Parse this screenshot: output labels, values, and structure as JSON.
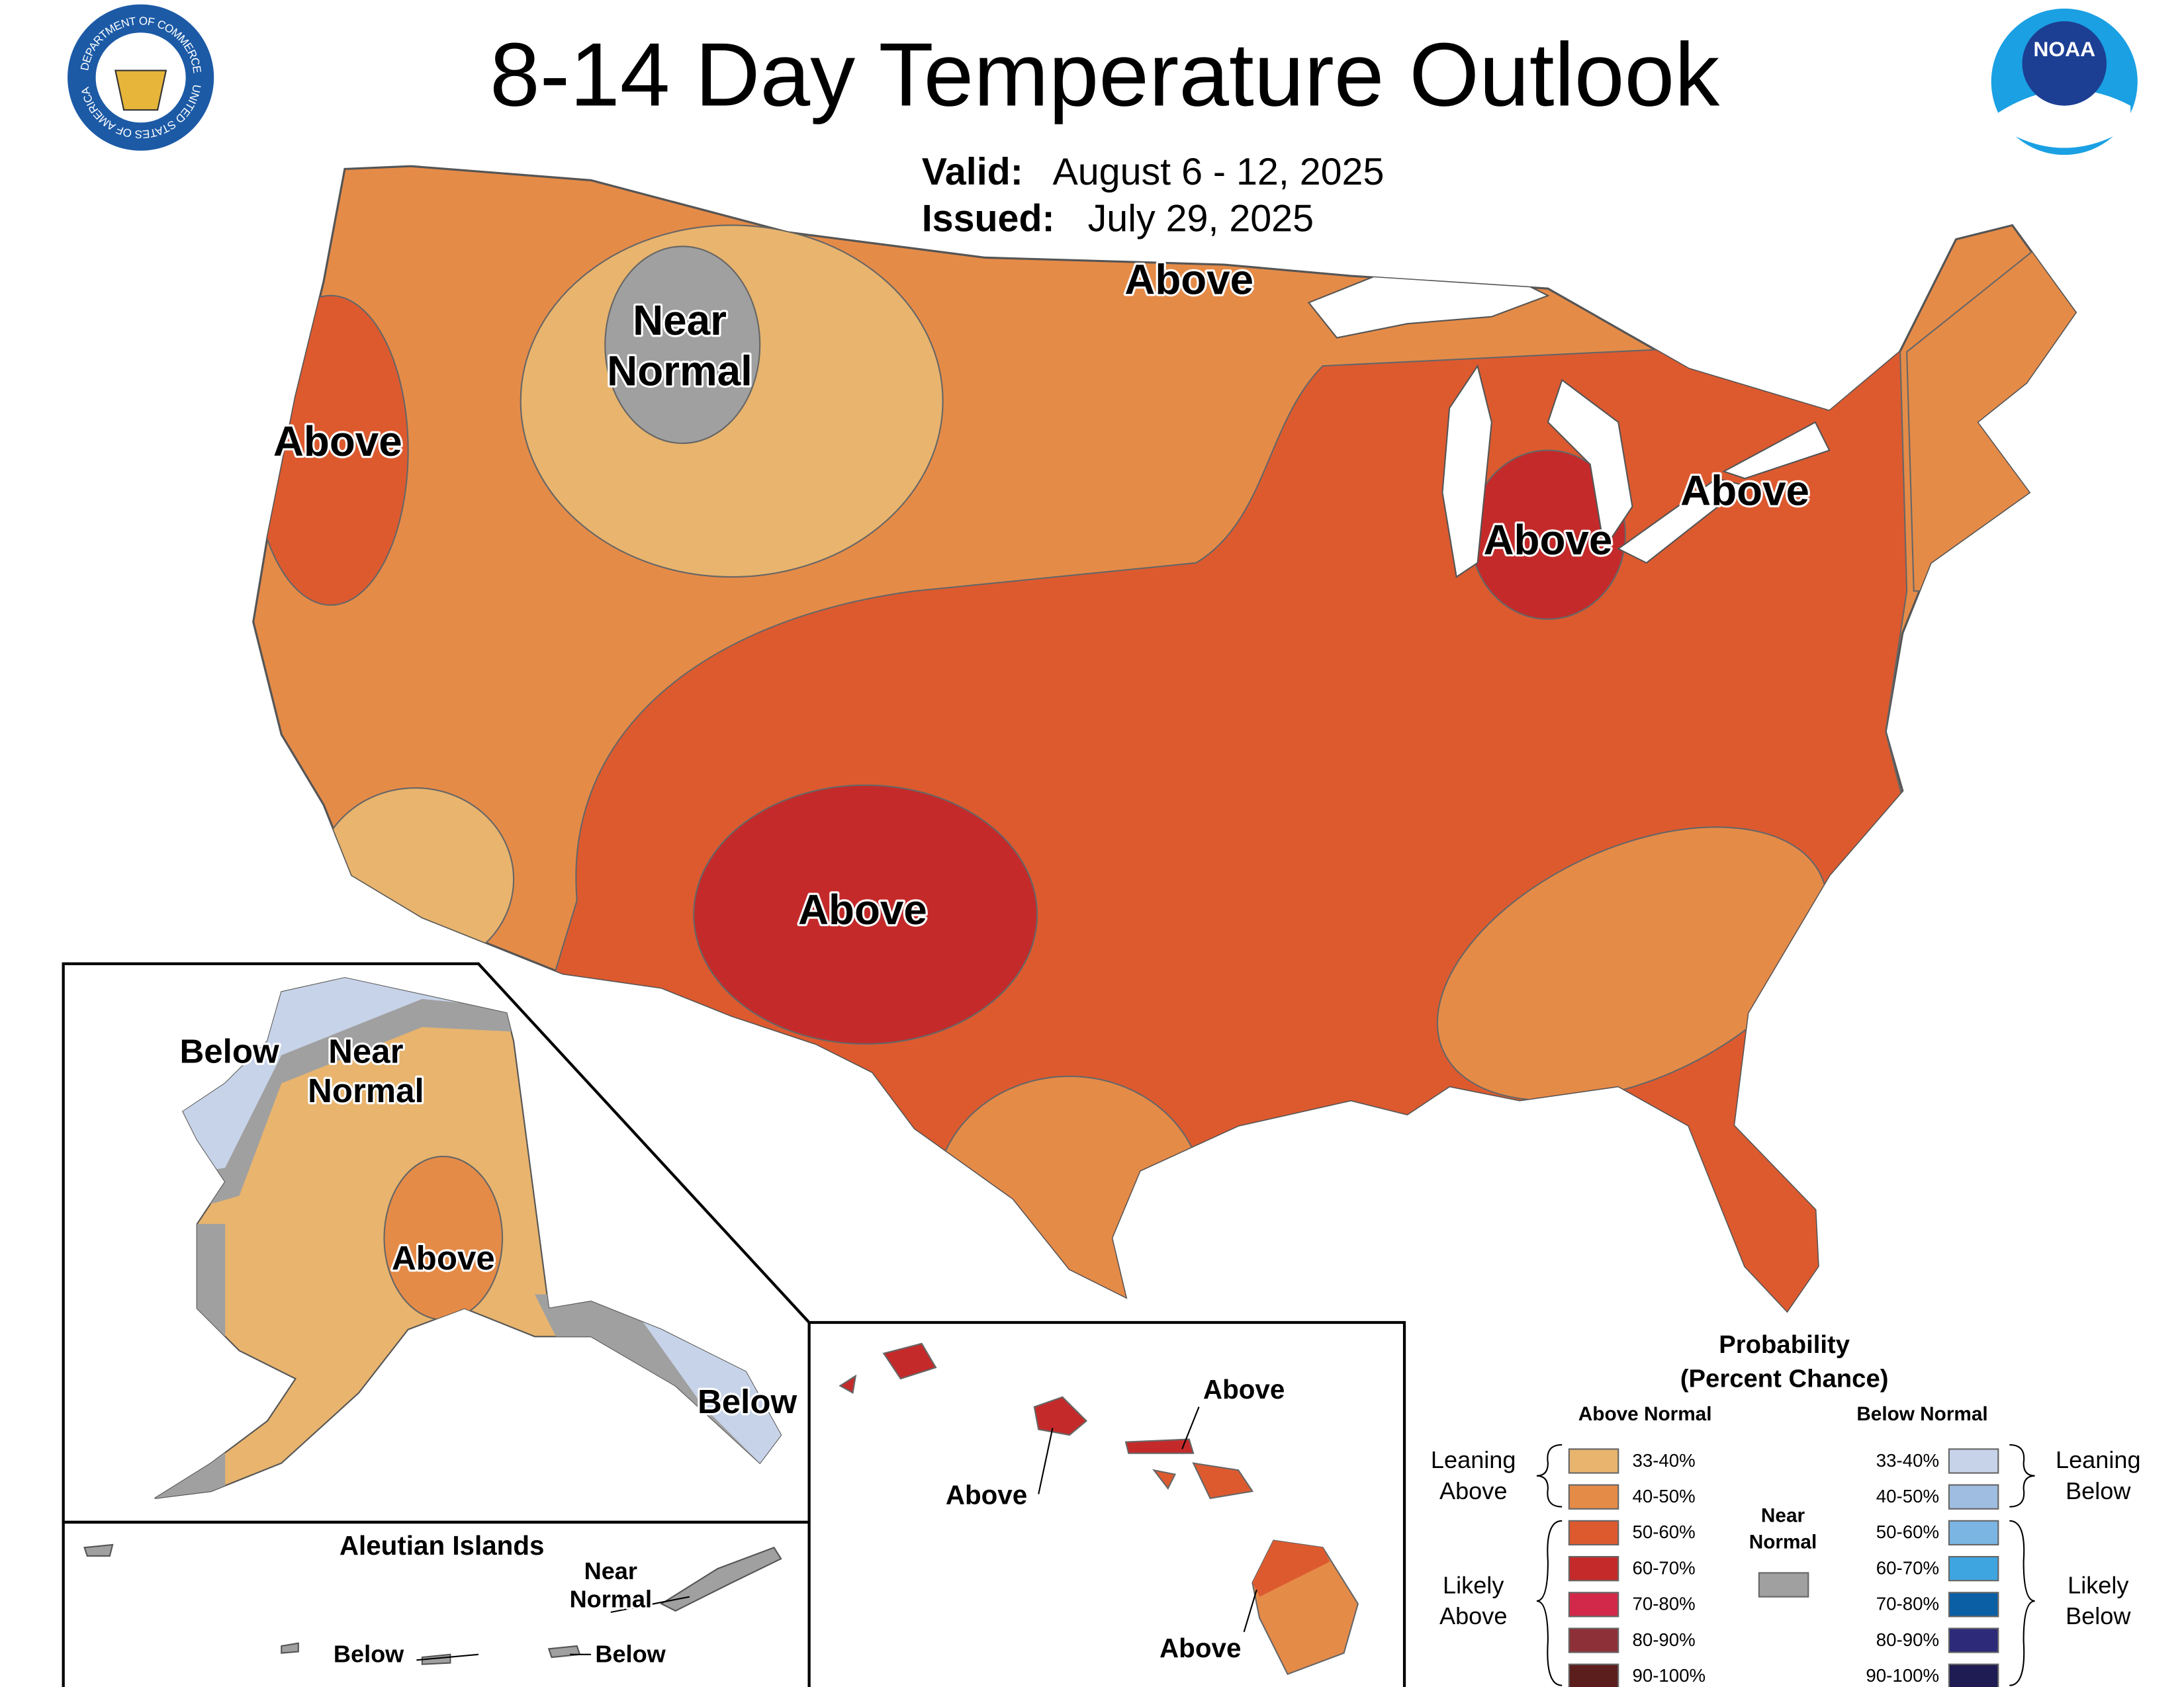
{
  "header": {
    "title": "8-14 Day Temperature Outlook",
    "valid_label": "Valid:",
    "valid": "August 6 - 12, 2025",
    "issued_label": "Issued:",
    "issued": "July 29, 2025",
    "seal_top": "DEPARTMENT OF COMMERCE",
    "seal_bottom": "UNITED STATES OF AMERICA",
    "noaa": "NOAA"
  },
  "conus_labels": [
    [
      "Above"
    ],
    [
      "Near",
      "Normal"
    ],
    [
      "Above"
    ],
    [
      "Above"
    ],
    [
      "Above"
    ],
    [
      "Above"
    ]
  ],
  "alaska_labels": [
    [
      "Below"
    ],
    [
      "Near",
      "Normal"
    ],
    [
      "Above"
    ],
    [
      "Below"
    ]
  ],
  "aleutian": {
    "title": "Aleutian Islands",
    "labels": [
      [
        "Near",
        "Normal"
      ],
      [
        "Below"
      ],
      [
        "Below"
      ]
    ]
  },
  "hawaii_labels": [
    [
      "Above"
    ],
    [
      "Above"
    ],
    [
      "Above"
    ]
  ],
  "legend": {
    "title": "Probability",
    "subtitle": "(Percent Chance)",
    "above_heading": "Above Normal",
    "below_heading": "Below Normal",
    "leaning_above": [
      "Leaning",
      "Above"
    ],
    "likely_above": [
      "Likely",
      "Above"
    ],
    "leaning_below": [
      "Leaning",
      "Below"
    ],
    "likely_below": [
      "Likely",
      "Below"
    ],
    "near_normal": {
      "lines": [
        "Near",
        "Normal"
      ],
      "color": "#a0a0a0"
    },
    "above_bins": [
      {
        "label": "33-40%",
        "color": "#e8b46e"
      },
      {
        "label": "40-50%",
        "color": "#e58b48"
      },
      {
        "label": "50-60%",
        "color": "#dd5a2f"
      },
      {
        "label": "60-70%",
        "color": "#c52a2a"
      },
      {
        "label": "70-80%",
        "color": "#d2294a"
      },
      {
        "label": "80-90%",
        "color": "#8e3038"
      },
      {
        "label": "90-100%",
        "color": "#5c1d1d"
      }
    ],
    "below_bins": [
      {
        "label": "33-40%",
        "color": "#c7d3e8"
      },
      {
        "label": "40-50%",
        "color": "#9fbde0"
      },
      {
        "label": "50-60%",
        "color": "#7ab5e3"
      },
      {
        "label": "60-70%",
        "color": "#3ea5e0"
      },
      {
        "label": "70-80%",
        "color": "#0b5fa5"
      },
      {
        "label": "80-90%",
        "color": "#2d2a7a"
      },
      {
        "label": "90-100%",
        "color": "#1e1c52"
      }
    ]
  }
}
